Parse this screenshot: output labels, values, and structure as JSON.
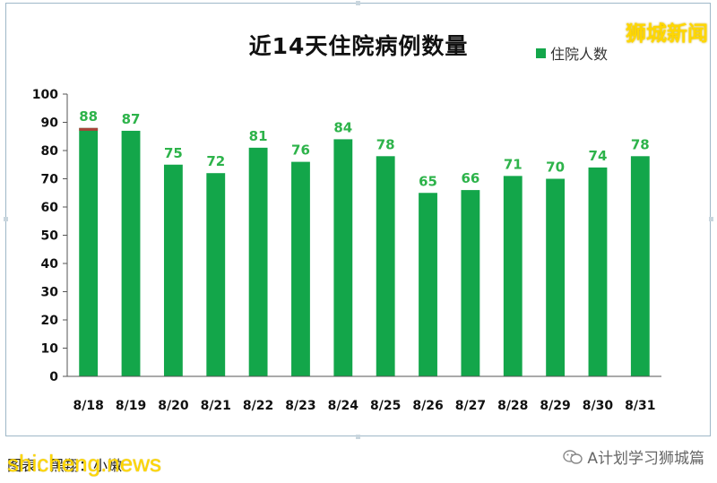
{
  "brand": "狮城新闻",
  "source_text": "图表：黑翔：小嫩",
  "watermark_site": "shicheng.news",
  "wechat_account": "A计划学习狮城篇",
  "colors": {
    "bar": "#13a64a",
    "label": "#2db34a",
    "accent_top": "#a8443a"
  },
  "chart_data": {
    "type": "bar",
    "title": "近14天住院病例数量",
    "legend": "住院人数",
    "legend_position": "top-right",
    "categories": [
      "8/18",
      "8/19",
      "8/20",
      "8/21",
      "8/22",
      "8/23",
      "8/24",
      "8/25",
      "8/26",
      "8/27",
      "8/28",
      "8/29",
      "8/30",
      "8/31"
    ],
    "series": [
      {
        "name": "住院人数",
        "values": [
          88,
          87,
          75,
          72,
          81,
          76,
          84,
          78,
          65,
          66,
          71,
          70,
          74,
          78
        ]
      }
    ],
    "ylim": [
      0,
      100
    ],
    "yticks": [
      0,
      10,
      20,
      30,
      40,
      50,
      60,
      70,
      80,
      90,
      100
    ],
    "first_bar_top_segment": 1,
    "grid": false
  }
}
